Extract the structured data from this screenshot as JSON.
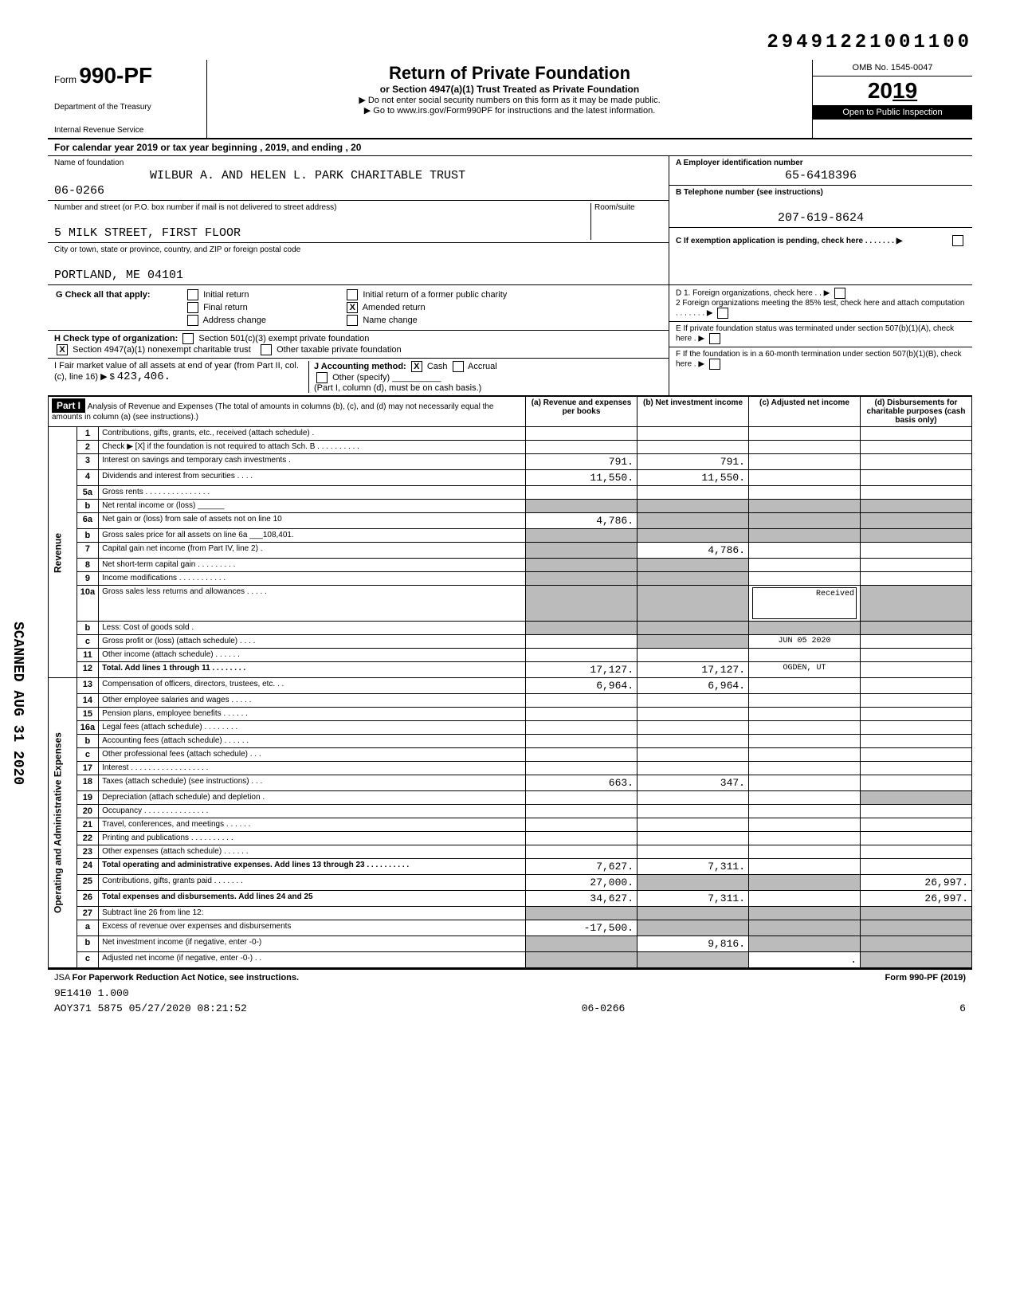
{
  "top_code": "29491221001100",
  "header": {
    "form_label": "Form",
    "form_number": "990-PF",
    "dept1": "Department of the Treasury",
    "dept2": "Internal Revenue Service",
    "title": "Return of Private Foundation",
    "subtitle": "or Section 4947(a)(1) Trust Treated as Private Foundation",
    "note1": "▶ Do not enter social security numbers on this form as it may be made public.",
    "note2": "▶ Go to www.irs.gov/Form990PF for instructions and the latest information.",
    "omb": "OMB No. 1545-0047",
    "year_prefix": "20",
    "year_bold": "19",
    "open": "Open to Public Inspection"
  },
  "calendar": "For calendar year 2019 or tax year beginning                              , 2019, and ending                           , 20",
  "info": {
    "name_label": "Name of foundation",
    "name": "WILBUR A. AND HELEN L. PARK CHARITABLE TRUST",
    "code": "06-0266",
    "addr_label": "Number and street (or P.O. box number if mail is not delivered to street address)",
    "room_label": "Room/suite",
    "addr": "5 MILK STREET, FIRST FLOOR",
    "city_label": "City or town, state or province, country, and ZIP or foreign postal code",
    "city": "PORTLAND, ME 04101",
    "ein_label": "A  Employer identification number",
    "ein": "65-6418396",
    "phone_label": "B  Telephone number (see instructions)",
    "phone": "207-619-8624",
    "c_label": "C  If exemption application is pending, check here . . . . . . . ▶"
  },
  "checks": {
    "g_label": "G Check all that apply:",
    "g1": "Initial return",
    "g2": "Initial return of a former public charity",
    "g3": "Final return",
    "g4": "Amended return",
    "g5": "Address change",
    "g6": "Name change",
    "h_label": "H Check type of organization:",
    "h1": "Section 501(c)(3) exempt private foundation",
    "h2": "Section 4947(a)(1) nonexempt charitable trust",
    "h3": "Other taxable private foundation",
    "i_label": "I  Fair market value of all assets at end of year (from Part II, col. (c), line 16) ▶ $",
    "i_value": "423,406.",
    "j_label": "J Accounting method:",
    "j1": "Cash",
    "j2": "Accrual",
    "j3": "Other (specify)",
    "j_note": "(Part I, column (d), must be on cash basis.)",
    "d1": "D  1. Foreign organizations, check here . . ▶",
    "d2": "2  Foreign organizations meeting the 85% test, check here and attach computation . . . . . . . ▶",
    "e": "E  If private foundation status was terminated under section 507(b)(1)(A), check here . ▶",
    "f": "F  If the foundation is in a 60-month termination under section 507(b)(1)(B), check here . ▶"
  },
  "part1": {
    "label": "Part I",
    "title": "Analysis of Revenue and Expenses (The total of amounts in columns (b), (c), and (d) may not necessarily equal the amounts in column (a) (see instructions).)",
    "col_a": "(a) Revenue and expenses per books",
    "col_b": "(b) Net investment income",
    "col_c": "(c) Adjusted net income",
    "col_d": "(d) Disbursements for charitable purposes (cash basis only)",
    "revenue_label": "Revenue",
    "expenses_label": "Operating and Administrative Expenses",
    "rows": [
      {
        "n": "1",
        "desc": "Contributions, gifts, grants, etc., received (attach schedule) .",
        "a": "",
        "b": "",
        "c": "",
        "d": ""
      },
      {
        "n": "2",
        "desc": "Check ▶ [X] if the foundation is not required to attach Sch. B . . . . . . . . . .",
        "a": "",
        "b": "",
        "c": "",
        "d": ""
      },
      {
        "n": "3",
        "desc": "Interest on savings and temporary cash investments .",
        "a": "791.",
        "b": "791.",
        "c": "",
        "d": ""
      },
      {
        "n": "4",
        "desc": "Dividends and interest from securities . . . .",
        "a": "11,550.",
        "b": "11,550.",
        "c": "",
        "d": ""
      },
      {
        "n": "5a",
        "desc": "Gross rents . . . . . . . . . . . . . . .",
        "a": "",
        "b": "",
        "c": "",
        "d": ""
      },
      {
        "n": "b",
        "desc": "Net rental income or (loss) ______",
        "a": "",
        "b": "",
        "c": "",
        "d": "",
        "shade_abcd": true
      },
      {
        "n": "6a",
        "desc": "Net gain or (loss) from sale of assets not on line 10",
        "a": "4,786.",
        "b": "",
        "c": "",
        "d": "",
        "shade_bcd": true
      },
      {
        "n": "b",
        "desc": "Gross sales price for all assets on line 6a ___108,401.",
        "a": "",
        "b": "",
        "c": "",
        "d": "",
        "shade_abcd": true
      },
      {
        "n": "7",
        "desc": "Capital gain net income (from Part IV, line 2) .",
        "a": "",
        "b": "4,786.",
        "c": "",
        "d": "",
        "shade_a": true
      },
      {
        "n": "8",
        "desc": "Net short-term capital gain . . . . . . . . .",
        "a": "",
        "b": "",
        "c": "",
        "d": "",
        "shade_ab": true
      },
      {
        "n": "9",
        "desc": "Income modifications . . . . . . . . . . .",
        "a": "",
        "b": "",
        "c": "",
        "d": "",
        "shade_ab": true
      },
      {
        "n": "10a",
        "desc": "Gross sales less returns and allowances . . . . .",
        "a": "",
        "b": "",
        "c": "",
        "d": "",
        "shade_abcd": true
      },
      {
        "n": "b",
        "desc": "Less: Cost of goods sold .",
        "a": "",
        "b": "",
        "c": "",
        "d": "",
        "shade_abcd": true
      },
      {
        "n": "c",
        "desc": "Gross profit or (loss) (attach schedule) . . . .",
        "a": "",
        "b": "",
        "c": "",
        "d": "",
        "shade_b": true
      },
      {
        "n": "11",
        "desc": "Other income (attach schedule) . . . . . .",
        "a": "",
        "b": "",
        "c": "",
        "d": ""
      },
      {
        "n": "12",
        "desc": "Total. Add lines 1 through 11 . . . . . . . .",
        "a": "17,127.",
        "b": "17,127.",
        "c": "",
        "d": "",
        "bold": true
      },
      {
        "n": "13",
        "desc": "Compensation of officers, directors, trustees, etc. . .",
        "a": "6,964.",
        "b": "6,964.",
        "c": "",
        "d": ""
      },
      {
        "n": "14",
        "desc": "Other employee salaries and wages . . . . .",
        "a": "",
        "b": "",
        "c": "",
        "d": ""
      },
      {
        "n": "15",
        "desc": "Pension plans, employee benefits . . . . . .",
        "a": "",
        "b": "",
        "c": "",
        "d": ""
      },
      {
        "n": "16a",
        "desc": "Legal fees (attach schedule) . . . . . . . .",
        "a": "",
        "b": "",
        "c": "",
        "d": ""
      },
      {
        "n": "b",
        "desc": "Accounting fees (attach schedule) . . . . . .",
        "a": "",
        "b": "",
        "c": "",
        "d": ""
      },
      {
        "n": "c",
        "desc": "Other professional fees (attach schedule) . . .",
        "a": "",
        "b": "",
        "c": "",
        "d": ""
      },
      {
        "n": "17",
        "desc": "Interest . . . . . . . . . . . . . . . . . .",
        "a": "",
        "b": "",
        "c": "",
        "d": ""
      },
      {
        "n": "18",
        "desc": "Taxes (attach schedule) (see instructions) . . .",
        "a": "663.",
        "b": "347.",
        "c": "",
        "d": ""
      },
      {
        "n": "19",
        "desc": "Depreciation (attach schedule) and depletion .",
        "a": "",
        "b": "",
        "c": "",
        "d": "",
        "shade_d": true
      },
      {
        "n": "20",
        "desc": "Occupancy . . . . . . . . . . . . . . .",
        "a": "",
        "b": "",
        "c": "",
        "d": ""
      },
      {
        "n": "21",
        "desc": "Travel, conferences, and meetings . . . . . .",
        "a": "",
        "b": "",
        "c": "",
        "d": ""
      },
      {
        "n": "22",
        "desc": "Printing and publications . . . . . . . . . .",
        "a": "",
        "b": "",
        "c": "",
        "d": ""
      },
      {
        "n": "23",
        "desc": "Other expenses (attach schedule) . . . . . .",
        "a": "",
        "b": "",
        "c": "",
        "d": ""
      },
      {
        "n": "24",
        "desc": "Total operating and administrative expenses. Add lines 13 through 23 . . . . . . . . . .",
        "a": "7,627.",
        "b": "7,311.",
        "c": "",
        "d": "",
        "bold": true
      },
      {
        "n": "25",
        "desc": "Contributions, gifts, grants paid . . . . . . .",
        "a": "27,000.",
        "b": "",
        "c": "",
        "d": "26,997.",
        "shade_bc": true
      },
      {
        "n": "26",
        "desc": "Total expenses and disbursements. Add lines 24 and 25",
        "a": "34,627.",
        "b": "7,311.",
        "c": "",
        "d": "26,997.",
        "bold": true
      },
      {
        "n": "27",
        "desc": "Subtract line 26 from line 12:",
        "a": "",
        "b": "",
        "c": "",
        "d": "",
        "shade_abcd": true
      },
      {
        "n": "a",
        "desc": "Excess of revenue over expenses and disbursements",
        "a": "-17,500.",
        "b": "",
        "c": "",
        "d": "",
        "shade_bcd": true
      },
      {
        "n": "b",
        "desc": "Net investment income (if negative, enter -0-)",
        "a": "",
        "b": "9,816.",
        "c": "",
        "d": "",
        "shade_acd": true
      },
      {
        "n": "c",
        "desc": "Adjusted net income (if negative, enter -0-) . .",
        "a": "",
        "b": "",
        "c": ".",
        "d": "",
        "shade_abd": true
      }
    ],
    "stamp1": "JUN 05 2020",
    "stamp2": "OGDEN, UT"
  },
  "footer": {
    "jsa": "JSA",
    "paperwork": "For Paperwork Reduction Act Notice, see instructions.",
    "form": "Form 990-PF (2019)",
    "line1": "9E1410 1.000",
    "line2a": "AOY371 5875 05/27/2020 08:21:52",
    "line2b": "06-0266",
    "line2c": "6"
  },
  "scanned": "SCANNED AUG 31 2020",
  "colors": {
    "black": "#000000",
    "white": "#ffffff",
    "shade": "#bbbbbb"
  }
}
